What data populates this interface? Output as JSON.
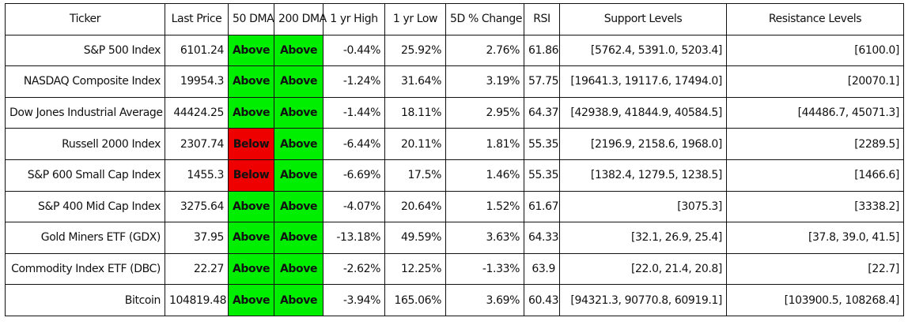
{
  "table": {
    "headers": [
      "Ticker",
      "Last Price",
      "50 DMA",
      "200 DMA",
      "1 yr High",
      "1 yr Low",
      "5D % Change",
      "RSI",
      "Support Levels",
      "Resistance Levels"
    ],
    "rows": [
      {
        "ticker": "S&P 500 Index",
        "last_price": "6101.24",
        "dma50": "Above",
        "dma200": "Above",
        "yr_high": "-0.44%",
        "yr_low": "25.92%",
        "change_5d": "2.76%",
        "rsi": "61.86",
        "support": "[5762.4, 5391.0, 5203.4]",
        "resistance": "[6100.0]"
      },
      {
        "ticker": "NASDAQ Composite Index",
        "last_price": "19954.3",
        "dma50": "Above",
        "dma200": "Above",
        "yr_high": "-1.24%",
        "yr_low": "31.64%",
        "change_5d": "3.19%",
        "rsi": "57.75",
        "support": "[19641.3, 19117.6, 17494.0]",
        "resistance": "[20070.1]"
      },
      {
        "ticker": "Dow Jones Industrial Average",
        "last_price": "44424.25",
        "dma50": "Above",
        "dma200": "Above",
        "yr_high": "-1.44%",
        "yr_low": "18.11%",
        "change_5d": "2.95%",
        "rsi": "64.37",
        "support": "[42938.9, 41844.9, 40584.5]",
        "resistance": "[44486.7, 45071.3]"
      },
      {
        "ticker": "Russell 2000 Index",
        "last_price": "2307.74",
        "dma50": "Below",
        "dma200": "Above",
        "yr_high": "-6.44%",
        "yr_low": "20.11%",
        "change_5d": "1.81%",
        "rsi": "55.35",
        "support": "[2196.9, 2158.6, 1968.0]",
        "resistance": "[2289.5]"
      },
      {
        "ticker": "S&P 600 Small Cap Index",
        "last_price": "1455.3",
        "dma50": "Below",
        "dma200": "Above",
        "yr_high": "-6.69%",
        "yr_low": "17.5%",
        "change_5d": "1.46%",
        "rsi": "55.35",
        "support": "[1382.4, 1279.5, 1238.5]",
        "resistance": "[1466.6]"
      },
      {
        "ticker": "S&P 400 Mid Cap Index",
        "last_price": "3275.64",
        "dma50": "Above",
        "dma200": "Above",
        "yr_high": "-4.07%",
        "yr_low": "20.64%",
        "change_5d": "1.52%",
        "rsi": "61.67",
        "support": "[3075.3]",
        "resistance": "[3338.2]"
      },
      {
        "ticker": "Gold Miners ETF (GDX)",
        "last_price": "37.95",
        "dma50": "Above",
        "dma200": "Above",
        "yr_high": "-13.18%",
        "yr_low": "49.59%",
        "change_5d": "3.63%",
        "rsi": "64.33",
        "support": "[32.1, 26.9, 25.4]",
        "resistance": "[37.8, 39.0, 41.5]"
      },
      {
        "ticker": "Commodity Index ETF (DBC)",
        "last_price": "22.27",
        "dma50": "Above",
        "dma200": "Above",
        "yr_high": "-2.62%",
        "yr_low": "12.25%",
        "change_5d": "-1.33%",
        "rsi": "63.9",
        "support": "[22.0, 21.4, 20.8]",
        "resistance": "[22.7]"
      },
      {
        "ticker": "Bitcoin",
        "last_price": "104819.48",
        "dma50": "Above",
        "dma200": "Above",
        "yr_high": "-3.94%",
        "yr_low": "165.06%",
        "change_5d": "3.69%",
        "rsi": "60.43",
        "support": "[94321.3, 90770.8, 60919.1]",
        "resistance": "[103900.5, 108268.4]"
      }
    ]
  },
  "colors": {
    "above": "#00ee00",
    "below": "#ee0000",
    "border": "#111111",
    "background": "#ffffff"
  }
}
